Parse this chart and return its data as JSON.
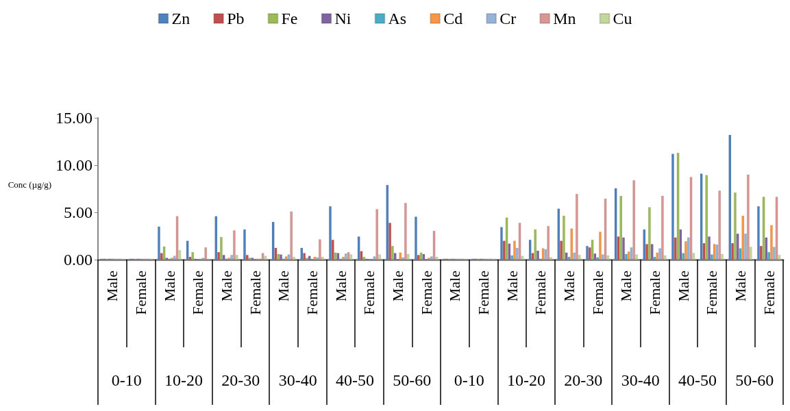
{
  "chart_data": {
    "type": "bar",
    "ylabel": "Conc (µg/g)",
    "categories": [
      "Male",
      "Female",
      "Male",
      "Female",
      "Male",
      "Female",
      "Male",
      "Female",
      "Male",
      "Female",
      "Male",
      "Female",
      "Male",
      "Female",
      "Male",
      "Female",
      "Male",
      "Female",
      "Male",
      "Female",
      "Male",
      "Female",
      "Male",
      "Female"
    ],
    "annotations": [
      "0-10",
      "10-20",
      "20-30",
      "30-40",
      "40-50",
      "50-60",
      "0-10",
      "10-20",
      "20-30",
      "30-40",
      "40-50",
      "50-60"
    ],
    "series": [
      {
        "name": "Zn",
        "color": "#4f81bd",
        "values": [
          0.1,
          0.1,
          3.5,
          2.0,
          4.6,
          3.2,
          4.0,
          1.25,
          5.65,
          2.45,
          7.9,
          4.55,
          0.1,
          0.1,
          3.45,
          2.1,
          5.4,
          1.45,
          7.55,
          3.2,
          11.2,
          9.1,
          13.2,
          5.65
        ]
      },
      {
        "name": "Pb",
        "color": "#c0504d",
        "values": [
          0.1,
          0.1,
          0.7,
          0.3,
          0.8,
          0.5,
          1.25,
          0.7,
          2.1,
          0.9,
          3.9,
          0.5,
          0.1,
          0.1,
          2.0,
          0.7,
          2.0,
          1.3,
          2.45,
          1.65,
          2.35,
          1.75,
          1.75,
          1.45
        ]
      },
      {
        "name": "Fe",
        "color": "#9bbb59",
        "values": [
          0.1,
          0.1,
          1.4,
          0.8,
          2.4,
          0.2,
          0.6,
          0.2,
          0.75,
          0.3,
          1.45,
          0.75,
          0.1,
          0.1,
          4.45,
          3.2,
          4.65,
          2.1,
          6.75,
          5.55,
          11.3,
          8.95,
          7.1,
          6.65
        ]
      },
      {
        "name": "Ni",
        "color": "#8064a2",
        "values": [
          0.1,
          0.1,
          0.2,
          0.1,
          0.5,
          0.2,
          0.55,
          0.4,
          0.7,
          0.1,
          0.7,
          0.6,
          0.1,
          0.1,
          1.7,
          0.95,
          0.75,
          0.65,
          2.35,
          1.65,
          3.2,
          2.45,
          2.75,
          2.35
        ]
      },
      {
        "name": "As",
        "color": "#4bacc6",
        "values": [
          0.1,
          0.1,
          0.1,
          0.05,
          0.1,
          0.05,
          0.1,
          0.05,
          0.1,
          0.05,
          0.05,
          0.05,
          0.1,
          0.1,
          0.45,
          0.1,
          0.3,
          0.25,
          0.6,
          0.3,
          0.7,
          0.55,
          1.2,
          0.8
        ]
      },
      {
        "name": "Cd",
        "color": "#f79646",
        "values": [
          0.1,
          0.1,
          0.2,
          0.1,
          0.2,
          0.1,
          0.35,
          0.3,
          0.3,
          0.05,
          0.75,
          0.2,
          0.1,
          0.1,
          2.0,
          1.2,
          3.3,
          2.95,
          0.85,
          0.75,
          1.95,
          1.65,
          4.65,
          3.65
        ]
      },
      {
        "name": "Cr",
        "color": "#95b3d7",
        "values": [
          0.1,
          0.1,
          0.4,
          0.2,
          0.5,
          0.1,
          0.55,
          0.25,
          0.65,
          0.35,
          0.25,
          0.35,
          0.1,
          0.1,
          1.25,
          1.1,
          0.75,
          0.55,
          1.3,
          1.2,
          2.35,
          1.6,
          2.75,
          1.35
        ]
      },
      {
        "name": "Mn",
        "color": "#d99694",
        "values": [
          0.1,
          0.1,
          4.6,
          1.3,
          3.1,
          0.7,
          5.1,
          2.15,
          0.8,
          5.35,
          6.0,
          3.05,
          0.1,
          0.1,
          3.9,
          3.55,
          6.95,
          6.45,
          8.4,
          6.75,
          8.75,
          7.3,
          9.0,
          6.65
        ]
      },
      {
        "name": "Cu",
        "color": "#c3d69b",
        "values": [
          0.1,
          0.1,
          1.0,
          0.1,
          0.5,
          0.4,
          0.3,
          0.3,
          0.55,
          0.55,
          0.6,
          0.3,
          0.1,
          0.1,
          0.4,
          0.25,
          0.5,
          0.45,
          0.55,
          0.45,
          0.7,
          0.6,
          1.35,
          0.5
        ]
      }
    ],
    "ylim": [
      0,
      15
    ],
    "yticks": [
      {
        "value": 0,
        "label": "0.00"
      },
      {
        "value": 5,
        "label": "5.00"
      },
      {
        "value": 10,
        "label": "10.00"
      },
      {
        "value": 15,
        "label": "15.00"
      }
    ],
    "legend": "top"
  }
}
